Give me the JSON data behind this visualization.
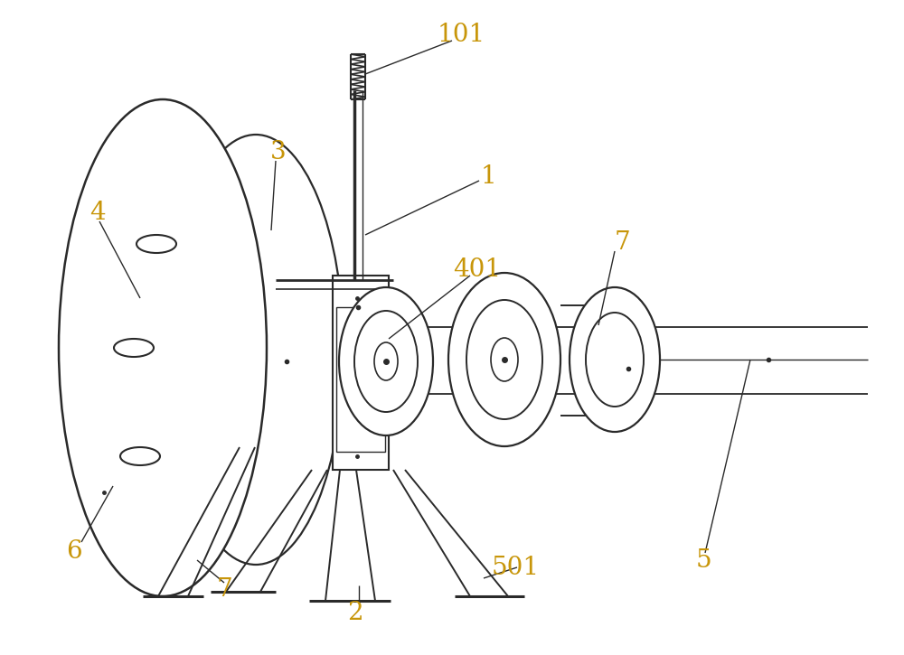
{
  "bg_color": "#ffffff",
  "line_color": "#2a2a2a",
  "label_color": "#c8960a",
  "figsize": [
    10.0,
    7.25
  ],
  "dpi": 100,
  "label_fontsize": 20
}
